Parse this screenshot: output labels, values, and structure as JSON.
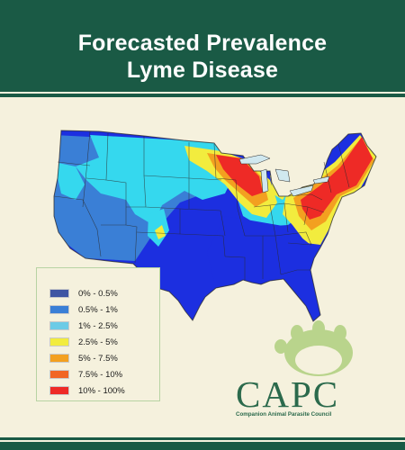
{
  "title": {
    "line1": "Forecasted Prevalence",
    "line2": "Lyme Disease"
  },
  "legend": {
    "items": [
      {
        "label": "0% - 0.5%",
        "color": "#3f55a3"
      },
      {
        "label": "0.5% - 1%",
        "color": "#3a7fd6"
      },
      {
        "label": "1% - 2.5%",
        "color": "#6ccbe6"
      },
      {
        "label": "2.5% - 5%",
        "color": "#f2ec3e"
      },
      {
        "label": "5% - 7.5%",
        "color": "#f3a020"
      },
      {
        "label": "7.5% - 10%",
        "color": "#f16524"
      },
      {
        "label": "10% - 100%",
        "color": "#ee2a26"
      }
    ]
  },
  "logo": {
    "name": "CAPC",
    "subtitle": "Companion Animal Parasite Council",
    "color": "#2b6a4c",
    "paw_color": "#b9d48c"
  },
  "colors": {
    "header": "#1a5a45",
    "background": "#f5f1dd",
    "low": "#1c2fe0",
    "mid_low": "#3a7fd6",
    "cyan": "#35d8ee",
    "yellow": "#f2ec3e",
    "orange": "#f3a020",
    "red": "#ee2a26"
  }
}
